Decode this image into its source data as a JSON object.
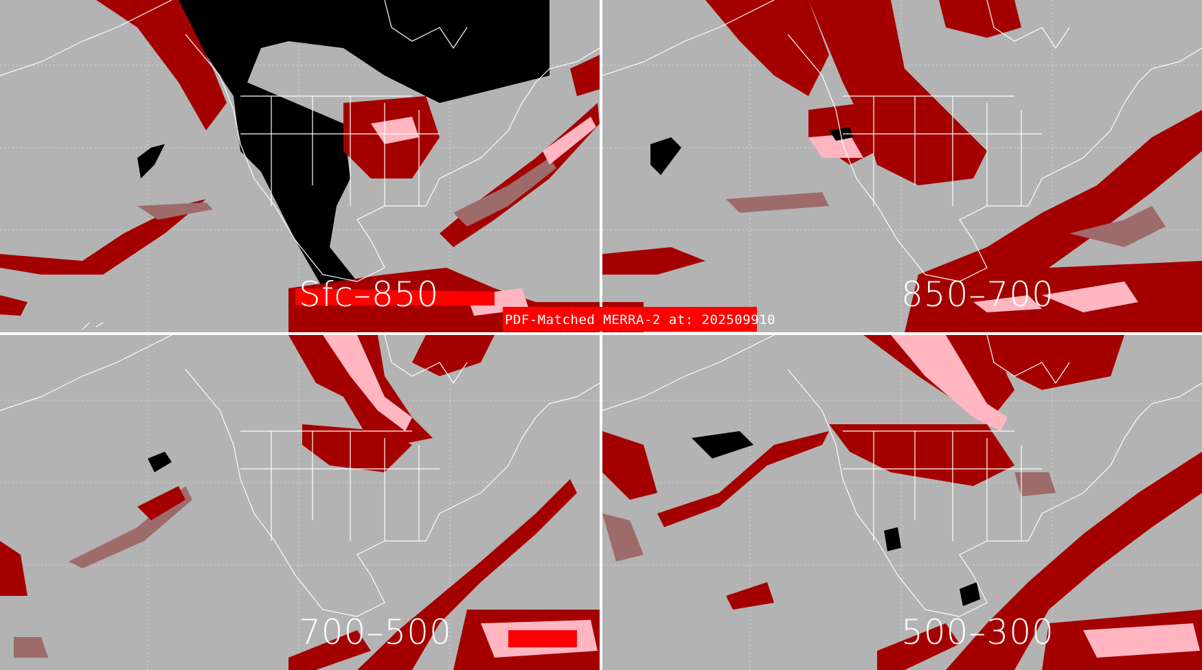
{
  "figure": {
    "title": "PDF-Matched MERRA-2 at: 202509910",
    "colors": {
      "background": "#b3b3b3",
      "light_category": "#ffb6c1",
      "medium_category": "#9e6b6b",
      "dark_category": "#a50000",
      "bright_category": "#ff0000",
      "high_category": "#000000",
      "coastline": "#ffffff"
    }
  },
  "panels": [
    {
      "label": "Sfc–850"
    },
    {
      "label": "850–700"
    },
    {
      "label": "700–500"
    },
    {
      "label": "500–300"
    }
  ]
}
